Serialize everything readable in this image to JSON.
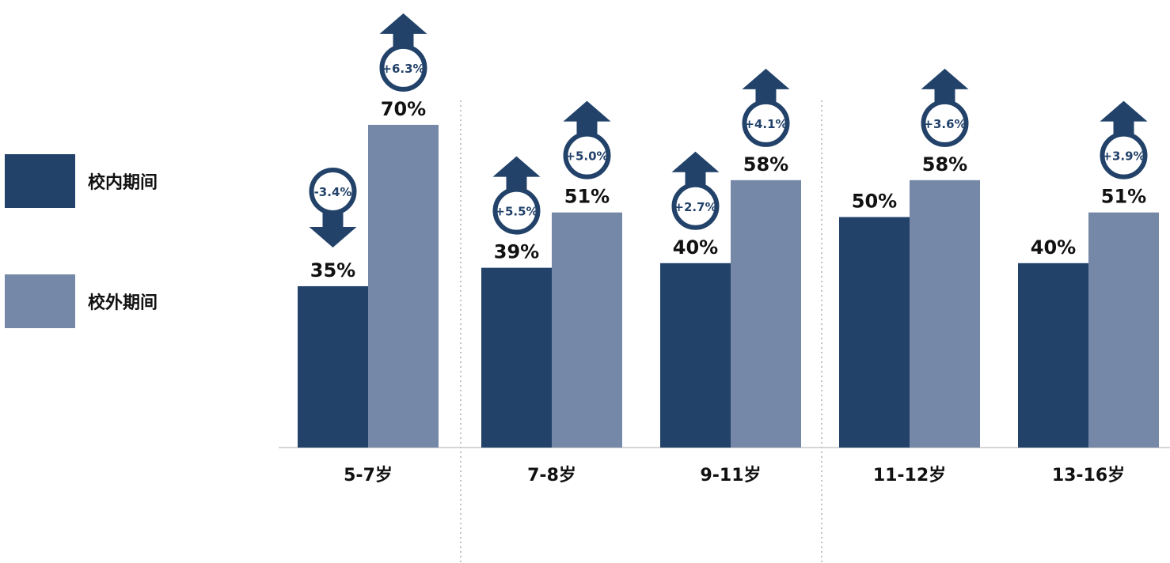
{
  "colors": {
    "in_school": "#22426a",
    "out_school": "#7688a7",
    "badge": "#22426a",
    "axis": "#c8c8c8",
    "separator": "#999999",
    "text": "#111111"
  },
  "chart_data": {
    "type": "bar",
    "categories": [
      "5-7岁",
      "7-8岁",
      "9-11岁",
      "11-12岁",
      "13-16岁"
    ],
    "series": [
      {
        "name": "校内期间",
        "values": [
          35,
          39,
          40,
          50,
          40
        ],
        "labels": [
          "35%",
          "39%",
          "40%",
          "50%",
          "40%"
        ]
      },
      {
        "name": "校外期间",
        "values": [
          70,
          51,
          58,
          58,
          51
        ],
        "labels": [
          "70%",
          "51%",
          "58%",
          "58%",
          "51%"
        ]
      }
    ],
    "changes": [
      {
        "series": 0,
        "category": 0,
        "label": "-3.4%",
        "direction": "down"
      },
      {
        "series": 1,
        "category": 0,
        "label": "+6.3%",
        "direction": "up"
      },
      {
        "series": 0,
        "category": 1,
        "label": "+5.5%",
        "direction": "up"
      },
      {
        "series": 1,
        "category": 1,
        "label": "+5.0%",
        "direction": "up"
      },
      {
        "series": 0,
        "category": 2,
        "label": "+2.7%",
        "direction": "up"
      },
      {
        "series": 1,
        "category": 2,
        "label": "+4.1%",
        "direction": "up"
      },
      {
        "series": 1,
        "category": 3,
        "label": "+3.6%",
        "direction": "up"
      },
      {
        "series": 1,
        "category": 4,
        "label": "+3.9%",
        "direction": "up"
      }
    ],
    "ylim": [
      0,
      100
    ],
    "grid": false,
    "legend_position": "left",
    "title": "",
    "xlabel": "",
    "ylabel": ""
  }
}
